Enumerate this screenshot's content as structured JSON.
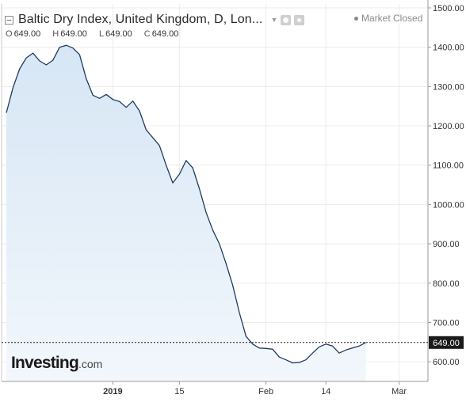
{
  "header": {
    "title": "Baltic Dry Index, United Kingdom, D, Lon...",
    "status": "Market Closed"
  },
  "ohlc": [
    {
      "label": "O",
      "value": "649.00"
    },
    {
      "label": "H",
      "value": "649.00"
    },
    {
      "label": "L",
      "value": "649.00"
    },
    {
      "label": "C",
      "value": "649.00"
    }
  ],
  "watermark": {
    "brand": "Investing",
    "suffix": ".com"
  },
  "colors": {
    "line": "#1f3a5f",
    "area_top": "#d6e6f5",
    "area_bottom": "#f2f7fc",
    "grid": "#ececec",
    "price_label_bg": "#1a1a1a"
  },
  "chart_data": {
    "type": "area",
    "series": [
      {
        "values": [
          1233,
          1297,
          1345,
          1373,
          1385,
          1365,
          1355,
          1367,
          1400,
          1405,
          1398,
          1381,
          1320,
          1278,
          1270,
          1280,
          1267,
          1262,
          1247,
          1263,
          1238,
          1190,
          1170,
          1150,
          1100,
          1055,
          1077,
          1112,
          1093,
          1040,
          980,
          935,
          900,
          850,
          795,
          725,
          665,
          645,
          635,
          634,
          632,
          612,
          605,
          597,
          598,
          605,
          622,
          638,
          645,
          640,
          622,
          630,
          635,
          640,
          649
        ]
      }
    ],
    "x_ticks": [
      {
        "label": "2019",
        "index": 16
      },
      {
        "label": "15",
        "index": 26
      },
      {
        "label": "Feb",
        "index": 39
      },
      {
        "label": "14",
        "index": 48
      },
      {
        "label": "Mar",
        "index": 59
      }
    ],
    "x_index_max": 62,
    "y_ticks": [
      "600.00",
      "700.00",
      "800.00",
      "900.00",
      "1000.00",
      "1100.00",
      "1200.00",
      "1300.00",
      "1400.00",
      "1500.00"
    ],
    "ylim": [
      550,
      1510
    ],
    "last_price": "649.00",
    "grid": true
  }
}
